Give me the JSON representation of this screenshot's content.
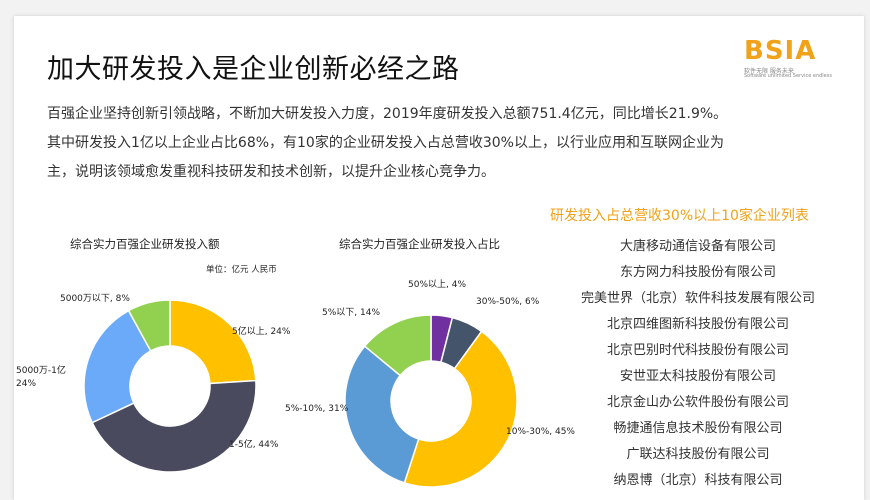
{
  "title": "加大研发投入是企业创新必经之路",
  "logo": {
    "main": "BSIA",
    "sub1": "软件无限 服务未来",
    "sub2": "Software unlimited Service endless"
  },
  "intro": [
    "百强企业坚持创新引领战略，不断加大研发投入力度，2019年度研发投入总额751.4亿元，同比增长21.9%。",
    "其中研发投入1亿以上企业占比68%，有10家的企业研发投入占总营收30%以上，以行业应用和互联网企业为",
    "主，说明该领域愈发重视科技研发和技术创新，以提升企业核心竞争力。"
  ],
  "list": {
    "title": "研发投入占总营收30%以上10家企业列表",
    "companies": [
      "大唐移动通信设备有限公司",
      "东方网力科技股份有限公司",
      "完美世界（北京）软件科技发展有限公司",
      "北京四维图新科技股份有限公司",
      "北京巴别时代科技股份有限公司",
      "安世亚太科技股份有限公司",
      "北京金山办公软件股份有限公司",
      "畅捷通信息技术股份有限公司",
      "广联达科技股份有限公司",
      "纳恩博（北京）科技有限公司"
    ]
  },
  "chart_data": [
    {
      "type": "pie",
      "title": "综合实力百强企业研发投入额",
      "unit": "单位：亿元 人民币",
      "donut": true,
      "slices": [
        {
          "label": "5亿以上",
          "value": 24,
          "text": "5亿以上, 24%",
          "color": "#ffc000"
        },
        {
          "label": "1-5亿",
          "value": 44,
          "text": "1-5亿, 44%",
          "color": "#4a4a5e"
        },
        {
          "label": "5000万-1亿",
          "value": 24,
          "text": "5000万-1亿, 24%",
          "color": "#6aaaf8"
        },
        {
          "label": "5000万以下",
          "value": 8,
          "text": "5000万以下, 8%",
          "color": "#92d050"
        }
      ]
    },
    {
      "type": "pie",
      "title": "综合实力百强企业研发投入占比",
      "donut": true,
      "slices": [
        {
          "label": "50%以上",
          "value": 4,
          "text": "50%以上, 4%",
          "color": "#7030a0"
        },
        {
          "label": "30%-50%",
          "value": 6,
          "text": "30%-50%, 6%",
          "color": "#44546a"
        },
        {
          "label": "10%-30%",
          "value": 45,
          "text": "10%-30%, 45%",
          "color": "#ffc000"
        },
        {
          "label": "5%-10%",
          "value": 31,
          "text": "5%-10%, 31%",
          "color": "#5b9bd5"
        },
        {
          "label": "5%以下",
          "value": 14,
          "text": "5%以下, 14%",
          "color": "#92d050"
        }
      ]
    }
  ]
}
